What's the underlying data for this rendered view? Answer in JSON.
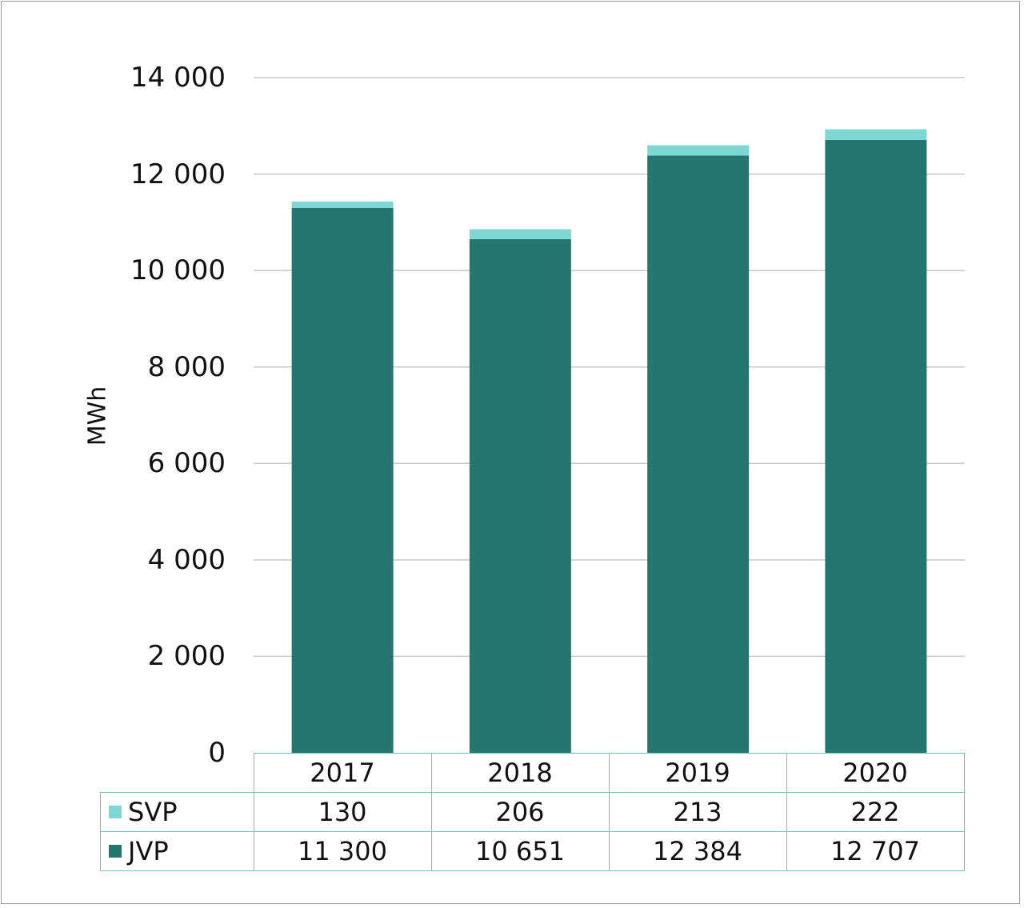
{
  "chart_data": {
    "type": "bar",
    "stacked": true,
    "categories": [
      "2017",
      "2018",
      "2019",
      "2020"
    ],
    "series": [
      {
        "name": "JVP",
        "values": [
          11300,
          10651,
          12384,
          12707
        ],
        "color": "#267670",
        "value_labels": [
          "11 300",
          "10 651",
          "12 384",
          "12 707"
        ]
      },
      {
        "name": "SVP",
        "values": [
          130,
          206,
          213,
          222
        ],
        "color": "#7dd8d4",
        "value_labels": [
          "130",
          "206",
          "213",
          "222"
        ]
      }
    ],
    "ylabel": "MWh",
    "ylim": [
      0,
      14000
    ],
    "yticks": [
      0,
      2000,
      4000,
      6000,
      8000,
      10000,
      12000,
      14000
    ],
    "ytick_labels": [
      "0",
      "2 000",
      "4 000",
      "6 000",
      "8 000",
      "10 000",
      "12 000",
      "14 000"
    ],
    "grid": true,
    "legend": "data-table"
  }
}
